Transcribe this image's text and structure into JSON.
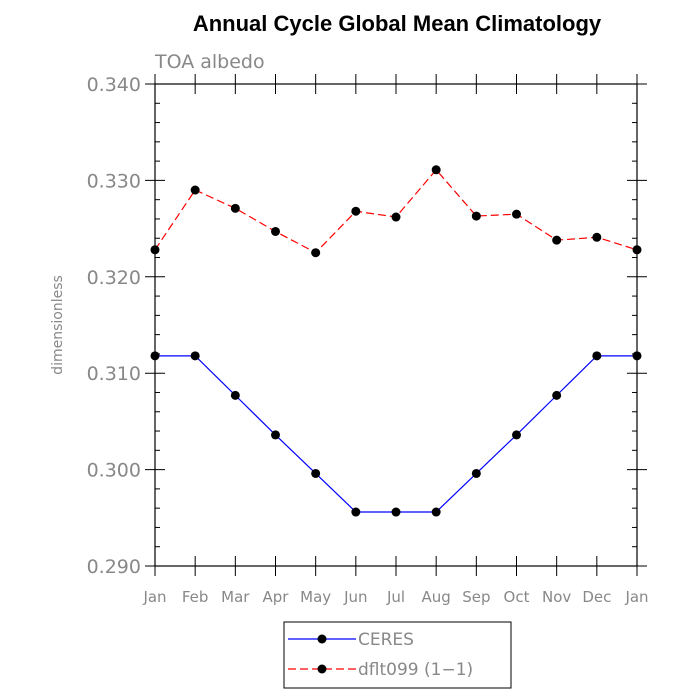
{
  "chart_data": {
    "type": "line",
    "title": "Annual Cycle Global Mean Climatology",
    "subtitle": "TOA albedo",
    "xlabel": "",
    "ylabel": "dimensionless",
    "categories": [
      "Jan",
      "Feb",
      "Mar",
      "Apr",
      "May",
      "Jun",
      "Jul",
      "Aug",
      "Sep",
      "Oct",
      "Nov",
      "Dec",
      "Jan"
    ],
    "ylim": [
      0.29,
      0.34
    ],
    "yticks": [
      0.29,
      0.3,
      0.31,
      0.32,
      0.33,
      0.34
    ],
    "ytick_labels": [
      "0.290",
      "0.300",
      "0.310",
      "0.320",
      "0.330",
      "0.340"
    ],
    "grid": false,
    "legend_position": "bottom-center",
    "series": [
      {
        "name": "CERES",
        "color": "#0000ff",
        "dash": "solid",
        "values": [
          0.3118,
          0.3118,
          0.3077,
          0.3036,
          0.2996,
          0.2956,
          0.2956,
          0.2956,
          0.2996,
          0.3036,
          0.3077,
          0.3118,
          0.3118
        ]
      },
      {
        "name": "dflt099 (1−1)",
        "color": "#ff0000",
        "dash": "dashed",
        "values": [
          0.3228,
          0.329,
          0.3271,
          0.3247,
          0.3225,
          0.3268,
          0.3262,
          0.3311,
          0.3263,
          0.3265,
          0.3238,
          0.3241,
          0.3228
        ]
      }
    ]
  }
}
